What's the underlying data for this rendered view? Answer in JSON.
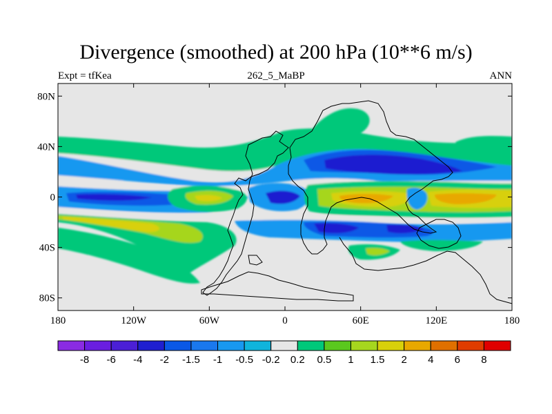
{
  "title": "Divergence (smoothed) at 200 hPa (10**6 m/s)",
  "left_label": "Expt = tfKea",
  "center_label": "262_5_MaBP",
  "right_label": "ANN",
  "map": {
    "projection": "cylindrical-equidistant",
    "lon_range": [
      -180,
      180
    ],
    "lat_range": [
      -90,
      90
    ],
    "background_color": "#e6e6e6",
    "lat_ticks": [
      {
        "lat": 80,
        "label": "80N"
      },
      {
        "lat": 40,
        "label": "40N"
      },
      {
        "lat": 0,
        "label": "0"
      },
      {
        "lat": -40,
        "label": "40S"
      },
      {
        "lat": -80,
        "label": "80S"
      }
    ],
    "lon_ticks": [
      {
        "lon": -180,
        "label": "180"
      },
      {
        "lon": -120,
        "label": "120W"
      },
      {
        "lon": -60,
        "label": "60W"
      },
      {
        "lon": 0,
        "label": "0"
      },
      {
        "lon": 60,
        "label": "60E"
      },
      {
        "lon": 120,
        "label": "120E"
      },
      {
        "lon": 180,
        "label": "180"
      }
    ]
  },
  "colorbar": {
    "colors": [
      "#8a2be2",
      "#6a1ee0",
      "#4b1fd6",
      "#1f1fd0",
      "#0a58e6",
      "#1a78ee",
      "#1898f0",
      "#10b4dc",
      "#e6e6e6",
      "#00c87a",
      "#5ac81e",
      "#a6d61e",
      "#d8d00a",
      "#e8a800",
      "#e07000",
      "#e03c00",
      "#e00000"
    ],
    "labels": [
      "-8",
      "-6",
      "-4",
      "-2",
      "-1.5",
      "-1",
      "-0.5",
      "-0.2",
      "0.2",
      "0.5",
      "1",
      "1.5",
      "2",
      "4",
      "6",
      "8"
    ]
  }
}
